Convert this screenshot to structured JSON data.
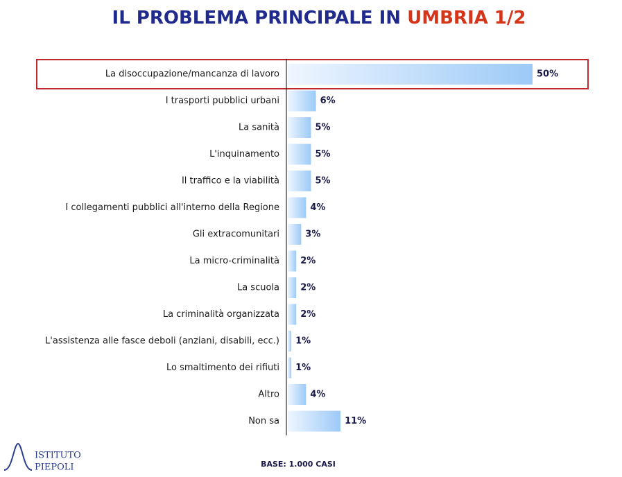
{
  "chart_data": {
    "type": "bar",
    "orientation": "horizontal",
    "title": "IL PROBLEMA PRINCIPALE IN",
    "title_highlight": "UMBRIA 1/2",
    "categories": [
      "La disoccupazione/mancanza di lavoro",
      "I trasporti pubblici urbani",
      "La sanità",
      "L'inquinamento",
      "Il traffico e la viabilità",
      "I collegamenti pubblici all'interno della Regione",
      "Gli extracomunitari",
      "La micro-criminalità",
      "La scuola",
      "La criminalità organizzata",
      "L'assistenza alle fasce deboli (anziani, disabili, ecc.)",
      "Lo smaltimento dei rifiuti",
      "Altro",
      "Non sa"
    ],
    "values": [
      50,
      6,
      5,
      5,
      5,
      4,
      3,
      2,
      2,
      2,
      1,
      1,
      4,
      11
    ],
    "value_labels": [
      "50%",
      "6%",
      "5%",
      "5%",
      "5%",
      "4%",
      "3%",
      "2%",
      "2%",
      "2%",
      "1%",
      "1%",
      "4%",
      "11%"
    ],
    "color": "#9ccaf7",
    "note": "BASE: 1.000 CASI"
  },
  "logo": {
    "line1": "ISTITUTO",
    "line2": "PIEPOLI"
  }
}
